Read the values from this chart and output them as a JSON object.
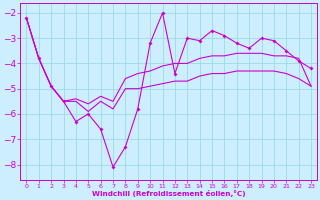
{
  "xlabel": "Windchill (Refroidissement éolien,°C)",
  "bg_color": "#cceeff",
  "grid_color": "#99dddd",
  "line_color": "#cc00cc",
  "x_ticks": [
    0,
    1,
    2,
    3,
    4,
    5,
    6,
    7,
    8,
    9,
    10,
    11,
    12,
    13,
    14,
    15,
    16,
    17,
    18,
    19,
    20,
    21,
    22,
    23
  ],
  "y_ticks": [
    -2,
    -3,
    -4,
    -5,
    -6,
    -7,
    -8
  ],
  "ylim": [
    -8.6,
    -1.6
  ],
  "xlim": [
    -0.5,
    23.5
  ],
  "series1_x": [
    0,
    1,
    2,
    3,
    4,
    5,
    6,
    7,
    8,
    9,
    10,
    11,
    12,
    13,
    14,
    15,
    16,
    17,
    18,
    19,
    20,
    21,
    22,
    23
  ],
  "series1_y": [
    -2.2,
    -3.8,
    -4.9,
    -5.5,
    -6.3,
    -6.0,
    -6.6,
    -8.1,
    -7.3,
    -5.8,
    -3.2,
    -2.0,
    -4.4,
    -3.0,
    -3.1,
    -2.7,
    -2.9,
    -3.2,
    -3.4,
    -3.0,
    -3.1,
    -3.5,
    -3.9,
    -4.2
  ],
  "series2_x": [
    0,
    1,
    2,
    3,
    4,
    5,
    6,
    7,
    8,
    9,
    10,
    11,
    12,
    13,
    14,
    15,
    16,
    17,
    18,
    19,
    20,
    21,
    22,
    23
  ],
  "series2_y": [
    -2.2,
    -3.8,
    -4.9,
    -5.5,
    -5.4,
    -5.6,
    -5.3,
    -5.5,
    -4.6,
    -4.4,
    -4.3,
    -4.1,
    -4.0,
    -4.0,
    -3.8,
    -3.7,
    -3.7,
    -3.6,
    -3.6,
    -3.6,
    -3.7,
    -3.7,
    -3.8,
    -4.9
  ],
  "series3_x": [
    0,
    1,
    2,
    3,
    4,
    5,
    6,
    7,
    8,
    9,
    10,
    11,
    12,
    13,
    14,
    15,
    16,
    17,
    18,
    19,
    20,
    21,
    22,
    23
  ],
  "series3_y": [
    -2.2,
    -3.8,
    -4.9,
    -5.5,
    -5.5,
    -5.9,
    -5.5,
    -5.8,
    -5.0,
    -5.0,
    -4.9,
    -4.8,
    -4.7,
    -4.7,
    -4.5,
    -4.4,
    -4.4,
    -4.3,
    -4.3,
    -4.3,
    -4.3,
    -4.4,
    -4.6,
    -4.9
  ]
}
